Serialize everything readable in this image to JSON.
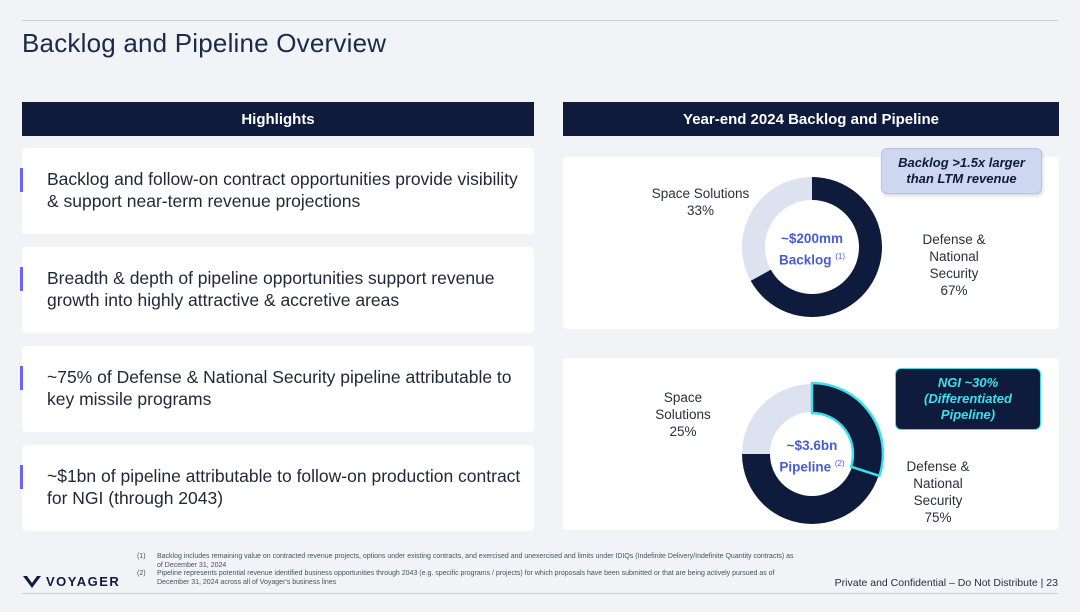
{
  "page": {
    "title": "Backlog and Pipeline Overview"
  },
  "highlights": {
    "header": "Highlights",
    "items": [
      "Backlog and follow-on contract opportunities provide visibility & support near-term revenue projections",
      "Breadth & depth of pipeline opportunities support revenue growth into highly attractive & accretive areas",
      "~75% of Defense & National Security pipeline attributable to key missile programs",
      "~$1bn of pipeline attributable to follow-on production contract for NGI (through 2043)"
    ]
  },
  "charts_header": "Year-end 2024 Backlog and Pipeline",
  "backlog": {
    "callout": "Backlog >1.5x larger than LTM revenue",
    "center_value": "~$200mm",
    "center_label": "Backlog",
    "center_ref": "(1)",
    "label_space_name": "Space Solutions",
    "label_space_pct": "33%",
    "label_defense_l1": "Defense &",
    "label_defense_l2": "National",
    "label_defense_l3": "Security",
    "label_defense_pct": "67%"
  },
  "pipeline": {
    "callout_l1": "NGI ~30%",
    "callout_l2": "(Differentiated",
    "callout_l3": "Pipeline)",
    "center_value": "~$3.6bn",
    "center_label": "Pipeline",
    "center_ref": "(2)",
    "label_space_l1": "Space",
    "label_space_l2": "Solutions",
    "label_space_pct": "25%",
    "label_defense_l1": "Defense &",
    "label_defense_l2": "National",
    "label_defense_l3": "Security",
    "label_defense_pct": "75%"
  },
  "chart_data": [
    {
      "type": "pie",
      "title": "",
      "categories": [
        "Defense & National Security",
        "Space Solutions"
      ],
      "values": [
        67,
        33
      ],
      "colors": [
        "#0e1b3d",
        "#dde2f0"
      ]
    },
    {
      "type": "pie",
      "title": "",
      "categories": [
        "Defense & National Security",
        "Space Solutions"
      ],
      "values": [
        75,
        25
      ],
      "highlight": {
        "name": "NGI",
        "value": 30
      },
      "colors": [
        "#0e1b3d",
        "#dde2f0",
        "#3de0ea"
      ]
    }
  ],
  "footer": {
    "logo": "VOYAGER",
    "notes": [
      {
        "num": "(1)",
        "text": "Backlog includes remaining value on contracted revenue projects, options under existing contracts, and exercised and unexercised and limits under IDIQs (Indefinite Delivery/Indefinite Quantity contracts) as of December 31, 2024"
      },
      {
        "num": "(2)",
        "text": "Pipeline represents potential revenue identified business opportunities through 2043 (e.g. specific programs / projects) for which proposals have been submitted or that are being actively pursued as of December 31, 2024 across all of Voyager's business lines"
      }
    ],
    "confidential": "Private and Confidential – Do Not Distribute | 23"
  }
}
